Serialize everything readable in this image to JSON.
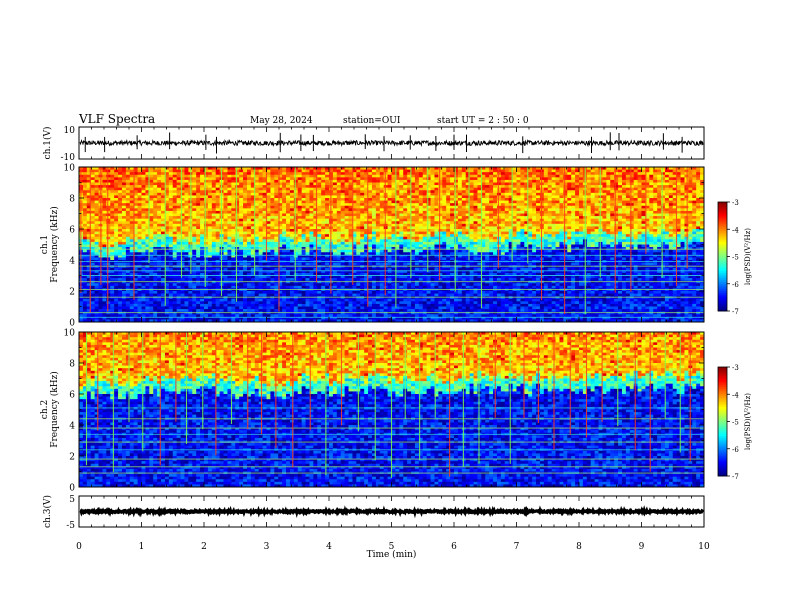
{
  "header": {
    "title": "VLF Spectra",
    "date": "May 28, 2024",
    "station": "station=OUI",
    "start": "start  UT  =   2  : 50 : 0"
  },
  "chart_data": [
    {
      "type": "line",
      "panel": "ch1-waveform",
      "ylabel": "ch.1(V)",
      "ylim": [
        -10,
        10
      ],
      "yticks": [
        "10",
        "-10"
      ],
      "baseline": 0,
      "noise_amplitude": 1.5,
      "spikes": [
        0.1,
        0.41,
        0.93,
        1.45,
        2.03,
        2.2,
        3.22,
        3.55,
        3.75,
        4.58,
        4.88,
        5.3,
        5.71,
        6.0,
        6.2,
        7.1,
        8.2,
        8.5,
        8.64,
        9.35,
        9.65
      ]
    },
    {
      "type": "heatmap",
      "panel": "ch1-spectrogram",
      "ylabel": "ch.1\nFrequency (kHz)",
      "ylim": [
        0,
        10
      ],
      "yticks": [
        "0",
        "2",
        "4",
        "6",
        "8",
        "10"
      ],
      "colorbar_label": "log(PSD)(V²/Hz)",
      "colorbar_ticks": [
        "-3",
        "-4",
        "-5",
        "-6",
        "-7"
      ],
      "colorbar_range": [
        -7,
        -3
      ],
      "noise_floor_khz": [
        [
          0,
          5.2
        ],
        [
          5.2,
          5.5
        ],
        [
          10,
          5.8
        ]
      ],
      "tone_khz": [
        0.3,
        0.6,
        1.6,
        2.1,
        2.6,
        3.0,
        3.3,
        3.6,
        3.9,
        4.3,
        4.7
      ],
      "sferic_min": [
        0.03,
        0.18,
        0.35,
        0.46,
        0.88,
        1.12,
        1.38,
        1.64,
        1.79,
        2.02,
        2.28,
        2.52,
        2.81,
        3.0,
        3.2,
        3.46,
        3.8,
        4.03,
        4.38,
        4.62,
        4.9,
        5.07,
        5.31,
        5.58,
        5.77,
        6.02,
        6.24,
        6.44,
        6.71,
        6.93,
        7.18,
        7.4,
        7.77,
        8.1,
        8.34,
        8.58,
        8.83,
        9.07,
        9.33,
        9.56,
        9.73
      ]
    },
    {
      "type": "heatmap",
      "panel": "ch2-spectrogram",
      "ylabel": "ch.2\nFrequency (kHz)",
      "ylim": [
        0,
        10
      ],
      "yticks": [
        "0",
        "2",
        "4",
        "6",
        "8",
        "10"
      ],
      "colorbar_label": "log(PSD)(V²/Hz)",
      "colorbar_ticks": [
        "-3",
        "-4",
        "-5",
        "-6",
        "-7"
      ],
      "colorbar_range": [
        -7,
        -3
      ],
      "noise_floor_khz": [
        [
          0,
          6.8
        ],
        [
          5.2,
          7.0
        ],
        [
          10,
          7.2
        ]
      ],
      "tone_khz": [
        0.9,
        1.3,
        1.8,
        2.4,
        2.9,
        3.4,
        3.8,
        4.4,
        5.1
      ],
      "sferic_min": [
        0.12,
        0.3,
        0.55,
        0.8,
        1.02,
        1.3,
        1.55,
        1.72,
        1.98,
        2.19,
        2.44,
        2.7,
        2.92,
        3.15,
        3.42,
        3.7,
        3.95,
        4.2,
        4.47,
        4.74,
        5.0,
        5.22,
        5.45,
        5.7,
        5.93,
        6.15,
        6.4,
        6.66,
        6.9,
        7.12,
        7.35,
        7.6,
        7.86,
        8.12,
        8.37,
        8.62,
        8.9,
        9.14,
        9.38,
        9.62,
        9.78
      ]
    },
    {
      "type": "line",
      "panel": "ch3-waveform",
      "ylabel": "ch.3(V)",
      "ylim": [
        -5,
        5
      ],
      "yticks": [
        "5",
        "-5"
      ],
      "baseline": 0,
      "noise_amplitude": 0.3
    }
  ],
  "xaxis": {
    "label": "Time (min)",
    "xlim": [
      0,
      10
    ],
    "ticks": [
      "0",
      "1",
      "2",
      "3",
      "4",
      "5",
      "6",
      "7",
      "8",
      "9",
      "10"
    ]
  }
}
